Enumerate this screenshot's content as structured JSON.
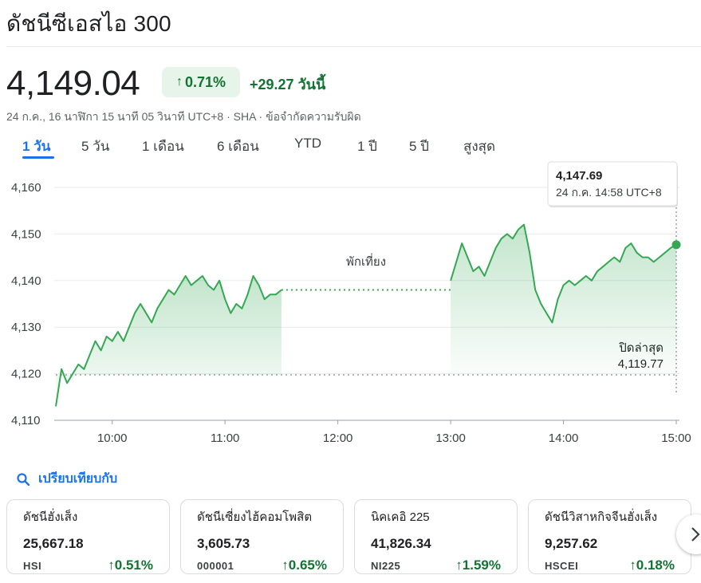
{
  "header": {
    "title": "ดัชนีซีเอสไอ 300",
    "price": "4,149.04",
    "change_pct": "0.71%",
    "change_abs": "+29.27 วันนี้",
    "meta": "24 ก.ค., 16 นาฬิกา 15 นาที 05 วินาที UTC+8 · SHA · ข้อจำกัดความรับผิด"
  },
  "tabs": [
    "1 วัน",
    "5 วัน",
    "1 เดือน",
    "6 เดือน",
    "YTD",
    "1 ปี",
    "5 ปี",
    "สูงสุด"
  ],
  "active_tab": "1 วัน",
  "colors": {
    "up": "#137333",
    "line": "#34a853",
    "accent": "#1a73e8",
    "grid": "#e8eaed"
  },
  "chart_data": {
    "type": "area",
    "ylim": [
      4110,
      4160
    ],
    "yticks": [
      "4,160",
      "4,150",
      "4,140",
      "4,130",
      "4,120",
      "4,110"
    ],
    "xticks": [
      "10:00",
      "11:00",
      "12:00",
      "13:00",
      "14:00",
      "15:00"
    ],
    "grid": true,
    "lunch_label": "พักเที่ยง",
    "previous_close": {
      "label": "ปิดล่าสุด",
      "value": 4119.77,
      "value_text": "4,119.77"
    },
    "tooltip": {
      "value": "4,147.69",
      "time": "24 ก.ค. 14:58 UTC+8"
    },
    "morning": {
      "x": [
        "9:30",
        "9:33",
        "9:36",
        "9:39",
        "9:42",
        "9:45",
        "9:48",
        "9:51",
        "9:54",
        "9:57",
        "10:00",
        "10:03",
        "10:06",
        "10:09",
        "10:12",
        "10:15",
        "10:18",
        "10:21",
        "10:24",
        "10:27",
        "10:30",
        "10:33",
        "10:36",
        "10:39",
        "10:42",
        "10:45",
        "10:48",
        "10:51",
        "10:54",
        "10:57",
        "11:00",
        "11:03",
        "11:06",
        "11:09",
        "11:12",
        "11:15",
        "11:18",
        "11:21",
        "11:24",
        "11:27",
        "11:30"
      ],
      "y": [
        4113,
        4121,
        4118,
        4120,
        4122,
        4121,
        4124,
        4127,
        4125,
        4128,
        4127,
        4129,
        4127,
        4130,
        4133,
        4135,
        4133,
        4131,
        4134,
        4136,
        4138,
        4137,
        4139,
        4141,
        4139,
        4140,
        4141,
        4139,
        4138,
        4140,
        4136,
        4133,
        4135,
        4134,
        4137,
        4141,
        4139,
        4136,
        4137,
        4137,
        4138
      ]
    },
    "afternoon": {
      "x": [
        "13:00",
        "13:03",
        "13:06",
        "13:09",
        "13:12",
        "13:15",
        "13:18",
        "13:21",
        "13:24",
        "13:27",
        "13:30",
        "13:33",
        "13:36",
        "13:39",
        "13:42",
        "13:45",
        "13:48",
        "13:51",
        "13:54",
        "13:57",
        "14:00",
        "14:03",
        "14:06",
        "14:09",
        "14:12",
        "14:15",
        "14:18",
        "14:21",
        "14:24",
        "14:27",
        "14:30",
        "14:33",
        "14:36",
        "14:39",
        "14:42",
        "14:45",
        "14:48",
        "14:51",
        "14:54",
        "14:57",
        "15:00"
      ],
      "y": [
        4140,
        4144,
        4148,
        4145,
        4142,
        4143,
        4141,
        4144,
        4147,
        4149,
        4150,
        4149,
        4151,
        4152,
        4146,
        4138,
        4135,
        4133,
        4131,
        4136,
        4139,
        4140,
        4139,
        4140,
        4141,
        4140,
        4142,
        4143,
        4144,
        4145,
        4144,
        4147,
        4148,
        4146,
        4145,
        4145,
        4144,
        4145,
        4146,
        4147,
        4147.69
      ]
    }
  },
  "compare": {
    "label": "เปรียบเทียบกับ"
  },
  "cards": [
    {
      "name": "ดัชนีฮั่งเส็ง",
      "value": "25,667.18",
      "symbol": "HSI",
      "pct": "0.51%"
    },
    {
      "name": "ดัชนีเซี่ยงไฮ้คอมโพสิต",
      "value": "3,605.73",
      "symbol": "000001",
      "pct": "0.65%"
    },
    {
      "name": "นิคเคอิ 225",
      "value": "41,826.34",
      "symbol": "NI225",
      "pct": "1.59%"
    },
    {
      "name": "ดัชนีวิสาหกิจจีนฮั่งเส็ง",
      "value": "9,257.62",
      "symbol": "HSCEI",
      "pct": "0.18%"
    }
  ]
}
